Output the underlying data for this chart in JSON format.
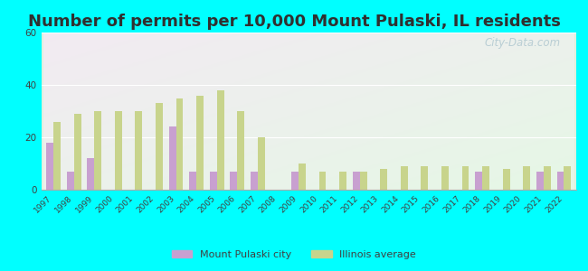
{
  "title": "Number of permits per 10,000 Mount Pulaski, IL residents",
  "years": [
    1997,
    1998,
    1999,
    2000,
    2001,
    2002,
    2003,
    2004,
    2005,
    2006,
    2007,
    2008,
    2009,
    2010,
    2011,
    2012,
    2013,
    2014,
    2015,
    2016,
    2017,
    2018,
    2019,
    2020,
    2021,
    2022
  ],
  "city_values": [
    18,
    7,
    12,
    0,
    0,
    0,
    24,
    7,
    7,
    7,
    7,
    0,
    7,
    0,
    0,
    7,
    0,
    0,
    0,
    0,
    0,
    7,
    0,
    0,
    7,
    7
  ],
  "il_values": [
    26,
    29,
    30,
    30,
    30,
    33,
    35,
    36,
    38,
    30,
    20,
    0,
    10,
    7,
    7,
    7,
    8,
    9,
    9,
    9,
    9,
    9,
    8,
    9,
    9,
    9
  ],
  "city_color": "#c8a0d0",
  "il_color": "#c8d48c",
  "figure_bg": "#00FFFF",
  "plot_bg": "#e8f5e8",
  "ylim": [
    0,
    60
  ],
  "yticks": [
    0,
    20,
    40,
    60
  ],
  "title_fontsize": 13,
  "title_color": "#303030",
  "legend_city": "Mount Pulaski city",
  "legend_il": "Illinois average",
  "watermark": "City-Data.com",
  "tick_color": "#404040",
  "spine_color": "#aaaaaa"
}
